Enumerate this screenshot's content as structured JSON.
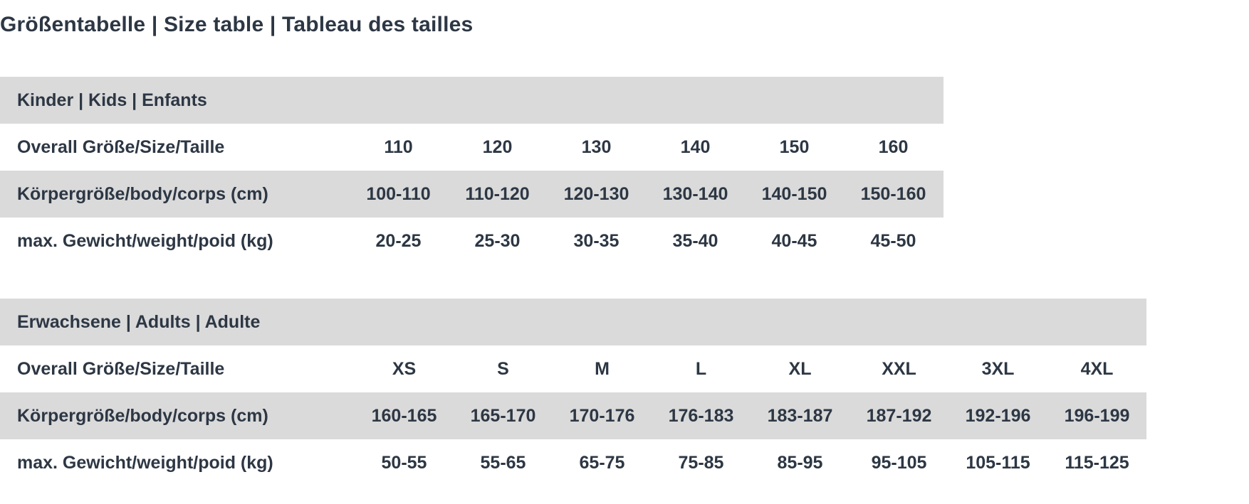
{
  "title": "Größentabelle | Size table | Tableau des tailles",
  "kids": {
    "header": "Kinder | Kids | Enfants",
    "rows": [
      {
        "label": "Overall Größe/Size/Taille",
        "values": [
          "110",
          "120",
          "130",
          "140",
          "150",
          "160"
        ]
      },
      {
        "label": "Körpergröße/body/corps (cm)",
        "values": [
          "100-110",
          "110-120",
          "120-130",
          "130-140",
          "140-150",
          "150-160"
        ]
      },
      {
        "label": "max. Gewicht/weight/poid (kg)",
        "values": [
          "20-25",
          "25-30",
          "30-35",
          "35-40",
          "40-45",
          "45-50"
        ]
      }
    ]
  },
  "adults": {
    "header": "Erwachsene | Adults | Adulte",
    "rows": [
      {
        "label": "Overall Größe/Size/Taille",
        "values": [
          "XS",
          "S",
          "M",
          "L",
          "XL",
          "XXL",
          "3XL",
          "4XL"
        ]
      },
      {
        "label": "Körpergröße/body/corps (cm)",
        "values": [
          "160-165",
          "165-170",
          "170-176",
          "176-183",
          "183-187",
          "187-192",
          "192-196",
          "196-199"
        ]
      },
      {
        "label": "max. Gewicht/weight/poid (kg)",
        "values": [
          "50-55",
          "55-65",
          "65-75",
          "75-85",
          "85-95",
          "95-105",
          "105-115",
          "115-125"
        ]
      }
    ]
  },
  "colors": {
    "text": "#2d3744",
    "row_shade": "#dadada"
  }
}
